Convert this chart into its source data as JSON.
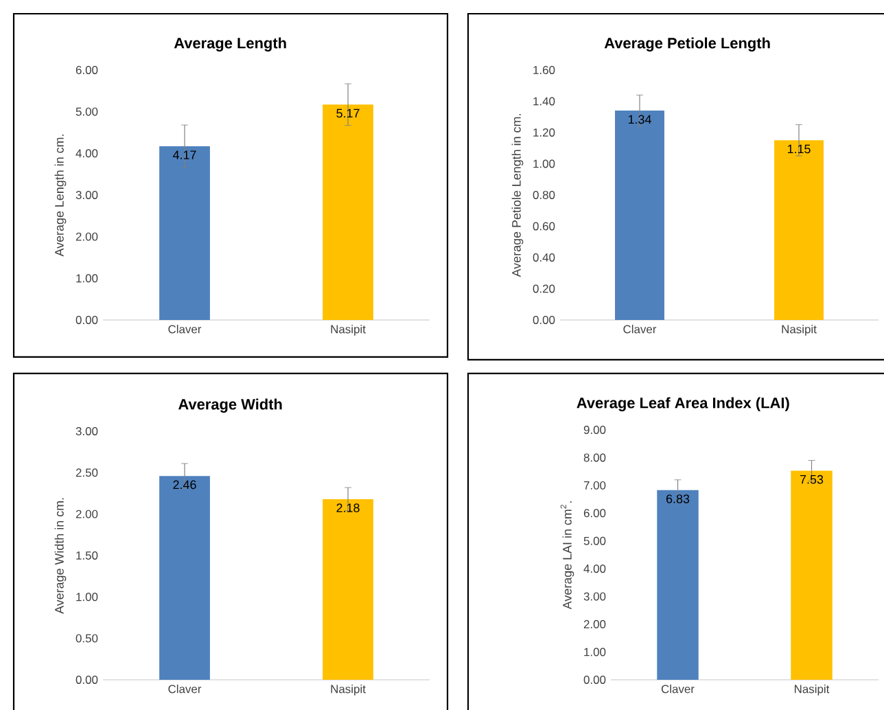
{
  "chart_data": [
    {
      "type": "bar",
      "title": "Average Length",
      "ylabel": "Average Length in cm.",
      "categories": [
        "Claver",
        "Nasipit"
      ],
      "values": [
        4.17,
        5.17
      ],
      "errors": [
        0.51,
        0.5
      ],
      "colors": [
        "#4f81bd",
        "#ffc000"
      ],
      "ylim": [
        0,
        6
      ],
      "yticks": [
        {
          "value": 0,
          "label": "0.00"
        },
        {
          "value": 1,
          "label": "1.00"
        },
        {
          "value": 2,
          "label": "2.00"
        },
        {
          "value": 3,
          "label": "3.00"
        },
        {
          "value": 4,
          "label": "4.00"
        },
        {
          "value": 5,
          "label": "5.00"
        },
        {
          "value": 6,
          "label": "6.00"
        }
      ],
      "data_labels": true
    },
    {
      "type": "bar",
      "title": "Average Petiole Length",
      "ylabel": "Average Petiole Length in cm.",
      "categories": [
        "Claver",
        "Nasipit"
      ],
      "values": [
        1.34,
        1.15
      ],
      "errors": [
        0.1,
        0.1
      ],
      "colors": [
        "#4f81bd",
        "#ffc000"
      ],
      "ylim": [
        0,
        1.6
      ],
      "yticks": [
        {
          "value": 0,
          "label": "0.00"
        },
        {
          "value": 0.2,
          "label": "0.20"
        },
        {
          "value": 0.4,
          "label": "0.40"
        },
        {
          "value": 0.6,
          "label": "0.60"
        },
        {
          "value": 0.8,
          "label": "0.80"
        },
        {
          "value": 1,
          "label": "1.00"
        },
        {
          "value": 1.2,
          "label": "1.20"
        },
        {
          "value": 1.4,
          "label": "1.40"
        },
        {
          "value": 1.6,
          "label": "1.60"
        }
      ],
      "data_labels": true
    },
    {
      "type": "bar",
      "title": "Average Width",
      "ylabel": "Average Width in cm.",
      "categories": [
        "Claver",
        "Nasipit"
      ],
      "values": [
        2.46,
        2.18
      ],
      "errors": [
        0.15,
        0.14
      ],
      "colors": [
        "#4f81bd",
        "#ffc000"
      ],
      "ylim": [
        0,
        3
      ],
      "yticks": [
        {
          "value": 0,
          "label": "0.00"
        },
        {
          "value": 0.5,
          "label": "0.50"
        },
        {
          "value": 1,
          "label": "1.00"
        },
        {
          "value": 1.5,
          "label": "1.50"
        },
        {
          "value": 2,
          "label": "2.00"
        },
        {
          "value": 2.5,
          "label": "2.50"
        },
        {
          "value": 3,
          "label": "3.00"
        }
      ],
      "data_labels": true
    },
    {
      "type": "bar",
      "title": "Average Leaf Area Index (LAI)",
      "ylabel": "Average LAI in cm$^{2}$.",
      "categories": [
        "Claver",
        "Nasipit"
      ],
      "values": [
        6.83,
        7.53
      ],
      "errors": [
        0.37,
        0.37
      ],
      "colors": [
        "#4f81bd",
        "#ffc000"
      ],
      "ylim": [
        0,
        9
      ],
      "yticks": [
        {
          "value": 0,
          "label": "0.00"
        },
        {
          "value": 1,
          "label": "1.00"
        },
        {
          "value": 2,
          "label": "2.00"
        },
        {
          "value": 3,
          "label": "3.00"
        },
        {
          "value": 4,
          "label": "4.00"
        },
        {
          "value": 5,
          "label": "5.00"
        },
        {
          "value": 6,
          "label": "6.00"
        },
        {
          "value": 7,
          "label": "7.00"
        },
        {
          "value": 8,
          "label": "8.00"
        },
        {
          "value": 9,
          "label": "9.00"
        }
      ],
      "data_labels": true
    }
  ]
}
